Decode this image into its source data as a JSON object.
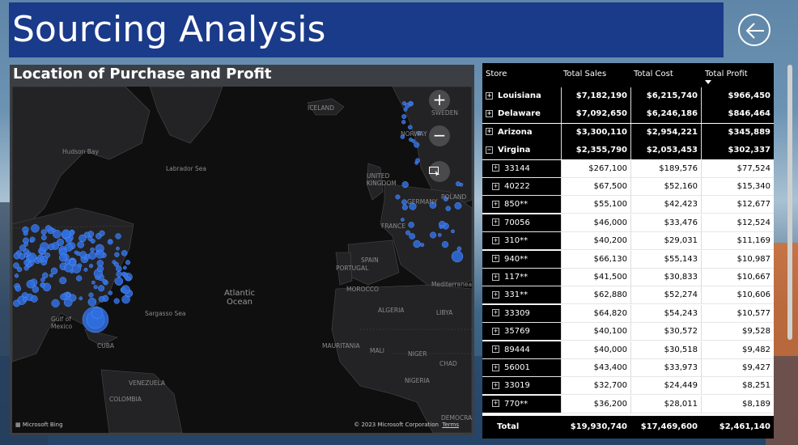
{
  "title": "Sourcing Analysis",
  "map": {
    "title": "Location of Purchase and Profit",
    "labels": {
      "hudson_bay": "Hudson Bay",
      "labrador_sea": "Labrador Sea",
      "iceland": "ICELAND",
      "sweden": "SWEDEN",
      "norway": "NORWAY",
      "united_kingdom": "UNITED\nKINGDOM",
      "poland": "POLAND",
      "germany": "GERMANY",
      "france": "FRANCE",
      "spain": "SPAIN",
      "portugal": "PORTUGAL",
      "morocco": "MOROCCO",
      "algeria": "ALGERIA",
      "libya": "LIBYA",
      "atlantic": "Atlantic\nOcean",
      "sargasso": "Sargasso Sea",
      "gulf": "Gulf of\nMexico",
      "cuba": "CUBA",
      "mauritania": "MAURITANIA",
      "mali": "MALI",
      "niger": "NIGER",
      "chad": "CHAD",
      "nigeria": "NIGERIA",
      "venezuela": "VENEZUELA",
      "colombia": "COLOMBIA",
      "mediterranean": "Mediterranean Sea",
      "democratic": "DEMOCRA"
    },
    "bing": "Microsoft Bing",
    "copyright": "© 2023 Microsoft Corporation",
    "terms": "Terms",
    "zoom_in": "+",
    "zoom_out": "−"
  },
  "table": {
    "columns": [
      "Store",
      "Total Sales",
      "Total Cost",
      "Total Profit"
    ],
    "rows": [
      {
        "store": "Louisiana",
        "sales": "$7,182,190",
        "cost": "$6,215,740",
        "profit": "$966,450",
        "level": "state",
        "expander": "+"
      },
      {
        "store": "Delaware",
        "sales": "$7,092,650",
        "cost": "$6,246,186",
        "profit": "$846,464",
        "level": "state",
        "expander": "+"
      },
      {
        "store": "Arizona",
        "sales": "$3,300,110",
        "cost": "$2,954,221",
        "profit": "$345,889",
        "level": "state",
        "expander": "+"
      },
      {
        "store": "Virgina",
        "sales": "$2,355,790",
        "cost": "$2,053,453",
        "profit": "$302,337",
        "level": "state",
        "expander": "−"
      },
      {
        "store": "33144",
        "sales": "$267,100",
        "cost": "$189,576",
        "profit": "$77,524",
        "level": "zip",
        "expander": "+"
      },
      {
        "store": "40222",
        "sales": "$67,500",
        "cost": "$52,160",
        "profit": "$15,340",
        "level": "zip",
        "expander": "+"
      },
      {
        "store": "850**",
        "sales": "$55,100",
        "cost": "$42,423",
        "profit": "$12,677",
        "level": "zip",
        "expander": "+"
      },
      {
        "store": "70056",
        "sales": "$46,000",
        "cost": "$33,476",
        "profit": "$12,524",
        "level": "zip",
        "expander": "+"
      },
      {
        "store": "310**",
        "sales": "$40,200",
        "cost": "$29,031",
        "profit": "$11,169",
        "level": "zip",
        "expander": "+"
      },
      {
        "store": "940**",
        "sales": "$66,130",
        "cost": "$55,143",
        "profit": "$10,987",
        "level": "zip",
        "expander": "+"
      },
      {
        "store": "117**",
        "sales": "$41,500",
        "cost": "$30,833",
        "profit": "$10,667",
        "level": "zip",
        "expander": "+"
      },
      {
        "store": "331**",
        "sales": "$62,880",
        "cost": "$52,274",
        "profit": "$10,606",
        "level": "zip",
        "expander": "+"
      },
      {
        "store": "33309",
        "sales": "$64,820",
        "cost": "$54,243",
        "profit": "$10,577",
        "level": "zip",
        "expander": "+"
      },
      {
        "store": "35769",
        "sales": "$40,100",
        "cost": "$30,572",
        "profit": "$9,528",
        "level": "zip",
        "expander": "+"
      },
      {
        "store": "89444",
        "sales": "$40,000",
        "cost": "$30,518",
        "profit": "$9,482",
        "level": "zip",
        "expander": "+"
      },
      {
        "store": "56001",
        "sales": "$43,400",
        "cost": "$33,973",
        "profit": "$9,427",
        "level": "zip",
        "expander": "+"
      },
      {
        "store": "33019",
        "sales": "$32,700",
        "cost": "$24,449",
        "profit": "$8,251",
        "level": "zip",
        "expander": "+"
      },
      {
        "store": "770**",
        "sales": "$36,200",
        "cost": "$28,011",
        "profit": "$8,189",
        "level": "zip",
        "expander": "+"
      }
    ],
    "total": {
      "label": "Total",
      "sales": "$19,930,740",
      "cost": "$17,469,600",
      "profit": "$2,461,140"
    }
  }
}
